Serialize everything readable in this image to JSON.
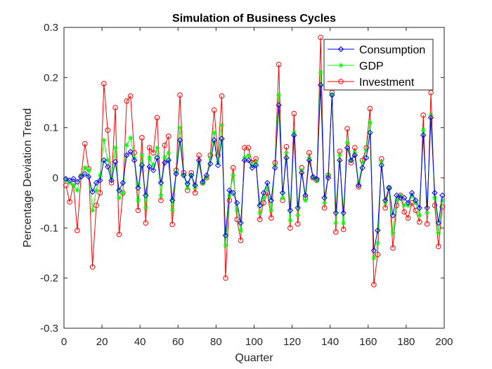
{
  "chart_data": {
    "type": "line",
    "title": "Simulation of Business Cycles",
    "xlabel": "Quarter",
    "ylabel": "Percentage Deviation Trend",
    "xlim": [
      0,
      200
    ],
    "ylim": [
      -0.3,
      0.3
    ],
    "xticks": [
      "0",
      "20",
      "40",
      "60",
      "80",
      "100",
      "120",
      "140",
      "160",
      "180",
      "200"
    ],
    "yticks": [
      "-0.3",
      "-0.2",
      "-0.1",
      "0",
      "0.1",
      "0.2",
      "0.3"
    ],
    "grid": false,
    "legend": "top-right",
    "x": [
      1,
      3,
      5,
      7,
      9,
      11,
      13,
      15,
      17,
      19,
      21,
      23,
      25,
      27,
      29,
      31,
      33,
      35,
      37,
      39,
      41,
      43,
      45,
      47,
      49,
      51,
      53,
      55,
      57,
      59,
      61,
      63,
      65,
      67,
      69,
      71,
      73,
      75,
      77,
      79,
      81,
      83,
      85,
      87,
      89,
      91,
      93,
      95,
      97,
      99,
      101,
      103,
      105,
      107,
      109,
      111,
      113,
      115,
      117,
      119,
      121,
      123,
      125,
      127,
      129,
      131,
      133,
      135,
      137,
      139,
      141,
      143,
      145,
      147,
      149,
      151,
      153,
      155,
      157,
      159,
      161,
      163,
      165,
      167,
      169,
      171,
      173,
      175,
      177,
      179,
      181,
      183,
      185,
      187,
      189,
      191,
      193,
      195,
      197,
      199
    ],
    "series": [
      {
        "name": "Consumption",
        "color": "#0000ff",
        "marker": "diamond",
        "values": [
          -0.002,
          -0.005,
          -0.002,
          -0.008,
          0.002,
          0.008,
          0.002,
          -0.028,
          -0.01,
          -0.005,
          0.035,
          0.022,
          -0.005,
          0.032,
          -0.025,
          -0.01,
          0.045,
          0.052,
          0.035,
          -0.02,
          0.025,
          -0.035,
          0.022,
          0.015,
          0.04,
          -0.01,
          0.03,
          0.035,
          -0.045,
          0.008,
          0.075,
          0.005,
          -0.012,
          0.005,
          -0.015,
          0.035,
          -0.008,
          0.005,
          0.028,
          0.075,
          0.025,
          0.078,
          -0.115,
          -0.025,
          -0.03,
          -0.05,
          -0.09,
          0.035,
          0.035,
          0.02,
          0.025,
          -0.055,
          -0.03,
          -0.01,
          -0.045,
          0.02,
          0.145,
          -0.03,
          0.04,
          -0.065,
          0.085,
          -0.06,
          0.01,
          -0.035,
          0.035,
          0.002,
          -0.002,
          0.185,
          -0.04,
          0.0,
          0.165,
          -0.07,
          0.035,
          -0.07,
          0.06,
          0.035,
          0.045,
          -0.015,
          0.02,
          0.04,
          0.09,
          -0.145,
          -0.105,
          0.025,
          -0.045,
          -0.02,
          -0.075,
          -0.035,
          -0.04,
          -0.04,
          -0.05,
          -0.03,
          -0.045,
          -0.06,
          0.085,
          -0.06,
          0.12,
          -0.03,
          -0.09,
          -0.035
        ]
      },
      {
        "name": "GDP",
        "color": "#00ff00",
        "marker": "asterisk",
        "values": [
          -0.005,
          -0.01,
          -0.015,
          -0.025,
          0.005,
          0.02,
          0.015,
          -0.065,
          -0.025,
          0.005,
          0.075,
          0.035,
          0.0,
          0.06,
          -0.04,
          -0.03,
          0.065,
          0.08,
          0.04,
          -0.045,
          0.045,
          -0.06,
          0.04,
          0.025,
          0.06,
          -0.035,
          0.04,
          0.05,
          -0.065,
          0.01,
          0.1,
          0.005,
          -0.02,
          0.005,
          -0.02,
          0.03,
          -0.01,
          0.0,
          0.04,
          0.09,
          0.03,
          0.105,
          -0.135,
          -0.035,
          0.005,
          -0.065,
          -0.105,
          0.04,
          0.045,
          0.025,
          0.03,
          -0.07,
          -0.04,
          -0.02,
          -0.065,
          0.025,
          0.165,
          -0.04,
          0.05,
          -0.085,
          0.09,
          -0.075,
          0.015,
          -0.045,
          0.04,
          0.0,
          -0.005,
          0.21,
          -0.05,
          0.005,
          0.165,
          -0.09,
          0.045,
          -0.09,
          0.07,
          0.035,
          0.05,
          -0.01,
          0.03,
          0.055,
          0.11,
          -0.16,
          -0.13,
          0.03,
          -0.05,
          -0.02,
          -0.11,
          -0.045,
          -0.035,
          -0.055,
          -0.055,
          -0.035,
          -0.05,
          -0.075,
          0.095,
          -0.07,
          0.125,
          -0.04,
          -0.11,
          -0.045
        ]
      },
      {
        "name": "Investment",
        "color": "#ff0000",
        "marker": "circle",
        "values": [
          -0.015,
          -0.048,
          -0.012,
          -0.105,
          0.003,
          0.068,
          0.018,
          -0.178,
          -0.055,
          -0.03,
          0.188,
          0.095,
          -0.01,
          0.14,
          -0.113,
          -0.03,
          0.153,
          0.163,
          0.05,
          -0.065,
          0.08,
          -0.09,
          0.06,
          0.05,
          0.12,
          -0.045,
          0.065,
          0.083,
          -0.093,
          0.015,
          0.165,
          0.01,
          -0.025,
          0.01,
          -0.03,
          0.045,
          -0.01,
          0.0,
          0.045,
          0.135,
          0.045,
          0.163,
          -0.2,
          -0.045,
          0.02,
          -0.083,
          -0.125,
          0.06,
          0.06,
          0.03,
          0.038,
          -0.083,
          -0.05,
          -0.03,
          -0.08,
          0.03,
          0.226,
          -0.045,
          0.062,
          -0.1,
          0.128,
          -0.092,
          0.02,
          -0.04,
          0.05,
          0.0,
          -0.005,
          0.28,
          -0.06,
          0.005,
          0.17,
          -0.108,
          0.053,
          -0.103,
          0.098,
          0.03,
          0.06,
          -0.018,
          0.035,
          0.06,
          0.138,
          -0.213,
          -0.153,
          0.038,
          -0.06,
          -0.02,
          -0.14,
          -0.055,
          -0.035,
          -0.068,
          -0.08,
          -0.05,
          -0.065,
          -0.088,
          0.125,
          -0.092,
          0.17,
          -0.055,
          -0.137,
          -0.058
        ]
      }
    ]
  }
}
